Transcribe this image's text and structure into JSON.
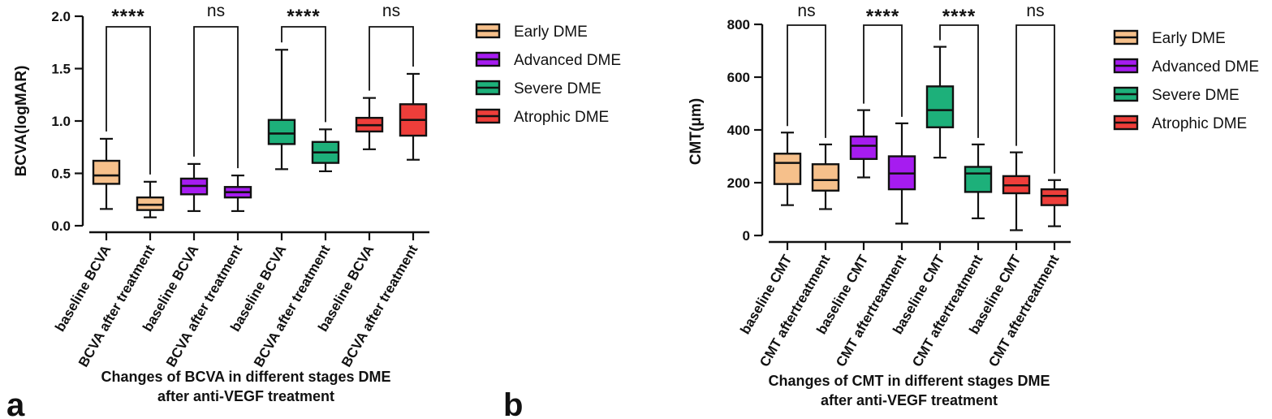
{
  "colors": {
    "Early DME": "#f6c08b",
    "Advanced DME": "#a61cf0",
    "Severe DME": "#1db07a",
    "Atrophic DME": "#ee3e3a"
  },
  "chart_data": [
    {
      "type": "box",
      "panel_label": "a",
      "ylabel": "BCVA(logMAR)",
      "title_lines": [
        "Changes of BCVA in different stages DME",
        "after anti-VEGF treatment"
      ],
      "ylim": [
        0.0,
        2.0
      ],
      "yticks": [
        "0.0",
        "0.5",
        "1.0",
        "1.5",
        "2.0"
      ],
      "ytick_values": [
        0,
        0.5,
        1.0,
        1.5,
        2.0
      ],
      "legend": [
        "Early DME",
        "Advanced DME",
        "Severe DME",
        "Atrophic DME"
      ],
      "categories": [
        "baseline BCVA",
        "BCVA after treatment",
        "baseline BCVA",
        "BCVA after treatment",
        "baseline BCVA",
        "BCVA after treatment",
        "baseline BCVA",
        "BCVA after treatment"
      ],
      "boxes": [
        {
          "group": "Early DME",
          "min": 0.16,
          "q1": 0.4,
          "median": 0.48,
          "q3": 0.62,
          "max": 0.83
        },
        {
          "group": "Early DME",
          "min": 0.08,
          "q1": 0.15,
          "median": 0.2,
          "q3": 0.27,
          "max": 0.42
        },
        {
          "group": "Advanced DME",
          "min": 0.14,
          "q1": 0.3,
          "median": 0.38,
          "q3": 0.45,
          "max": 0.59
        },
        {
          "group": "Advanced DME",
          "min": 0.14,
          "q1": 0.27,
          "median": 0.32,
          "q3": 0.37,
          "max": 0.48
        },
        {
          "group": "Severe DME",
          "min": 0.54,
          "q1": 0.78,
          "median": 0.88,
          "q3": 1.01,
          "max": 1.68
        },
        {
          "group": "Severe DME",
          "min": 0.52,
          "q1": 0.6,
          "median": 0.7,
          "q3": 0.8,
          "max": 0.92
        },
        {
          "group": "Atrophic DME",
          "min": 0.73,
          "q1": 0.9,
          "median": 0.96,
          "q3": 1.03,
          "max": 1.22
        },
        {
          "group": "Atrophic DME",
          "min": 0.63,
          "q1": 0.86,
          "median": 1.01,
          "q3": 1.16,
          "max": 1.45
        }
      ],
      "significance": [
        {
          "pair": [
            0,
            1
          ],
          "label": "****"
        },
        {
          "pair": [
            2,
            3
          ],
          "label": "ns"
        },
        {
          "pair": [
            4,
            5
          ],
          "label": "****"
        },
        {
          "pair": [
            6,
            7
          ],
          "label": "ns"
        }
      ]
    },
    {
      "type": "box",
      "panel_label": "b",
      "ylabel": "CMT(μm)",
      "title_lines": [
        "Changes of CMT in different stages DME",
        "after anti-VEGF treatment"
      ],
      "ylim": [
        0,
        800
      ],
      "yticks": [
        "0",
        "200",
        "400",
        "600",
        "800"
      ],
      "ytick_values": [
        0,
        200,
        400,
        600,
        800
      ],
      "legend": [
        "Early DME",
        "Advanced DME",
        "Severe DME",
        "Atrophic DME"
      ],
      "categories": [
        "baseline CMT",
        "CMT aftertreatment",
        "baseline CMT",
        "CMT aftertreatment",
        "baseline CMT",
        "CMT aftertreatment",
        "baseline CMT",
        "CMT aftertreatment"
      ],
      "boxes": [
        {
          "group": "Early DME",
          "min": 115,
          "q1": 195,
          "median": 275,
          "q3": 310,
          "max": 390
        },
        {
          "group": "Early DME",
          "min": 100,
          "q1": 170,
          "median": 210,
          "q3": 270,
          "max": 345
        },
        {
          "group": "Advanced DME",
          "min": 220,
          "q1": 290,
          "median": 340,
          "q3": 375,
          "max": 475
        },
        {
          "group": "Advanced DME",
          "min": 45,
          "q1": 175,
          "median": 235,
          "q3": 300,
          "max": 425
        },
        {
          "group": "Severe DME",
          "min": 295,
          "q1": 410,
          "median": 475,
          "q3": 565,
          "max": 715
        },
        {
          "group": "Severe DME",
          "min": 65,
          "q1": 165,
          "median": 235,
          "q3": 260,
          "max": 345
        },
        {
          "group": "Atrophic DME",
          "min": 20,
          "q1": 160,
          "median": 190,
          "q3": 225,
          "max": 315
        },
        {
          "group": "Atrophic DME",
          "min": 35,
          "q1": 115,
          "median": 150,
          "q3": 175,
          "max": 210
        }
      ],
      "significance": [
        {
          "pair": [
            0,
            1
          ],
          "label": "ns"
        },
        {
          "pair": [
            2,
            3
          ],
          "label": "****"
        },
        {
          "pair": [
            4,
            5
          ],
          "label": "****"
        },
        {
          "pair": [
            6,
            7
          ],
          "label": "ns"
        }
      ]
    }
  ]
}
